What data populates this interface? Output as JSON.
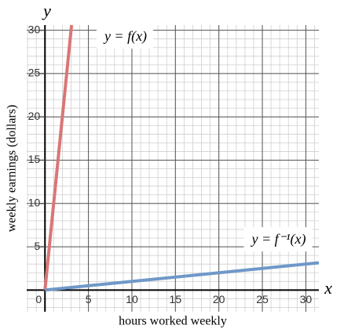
{
  "chart_data": {
    "type": "line",
    "x_label": "hours worked weekly",
    "y_label": "weekly earnings (dollars)",
    "x_axis_name": "x",
    "y_axis_name": "y",
    "xlim": [
      -2.1,
      31.5
    ],
    "ylim": [
      -2.5,
      30.6
    ],
    "xticks": [
      0,
      5,
      10,
      15,
      20,
      25,
      30
    ],
    "yticks": [
      5,
      10,
      15,
      20,
      25,
      30
    ],
    "grid": true,
    "series": [
      {
        "name": "y = f(x)",
        "color": "#d97676",
        "x": [
          0,
          3.06
        ],
        "values": [
          0,
          30.6
        ]
      },
      {
        "name": "y = f⁻¹(x)",
        "color": "#6f98c9",
        "x": [
          0,
          31.5
        ],
        "values": [
          0,
          3.15
        ]
      }
    ]
  }
}
